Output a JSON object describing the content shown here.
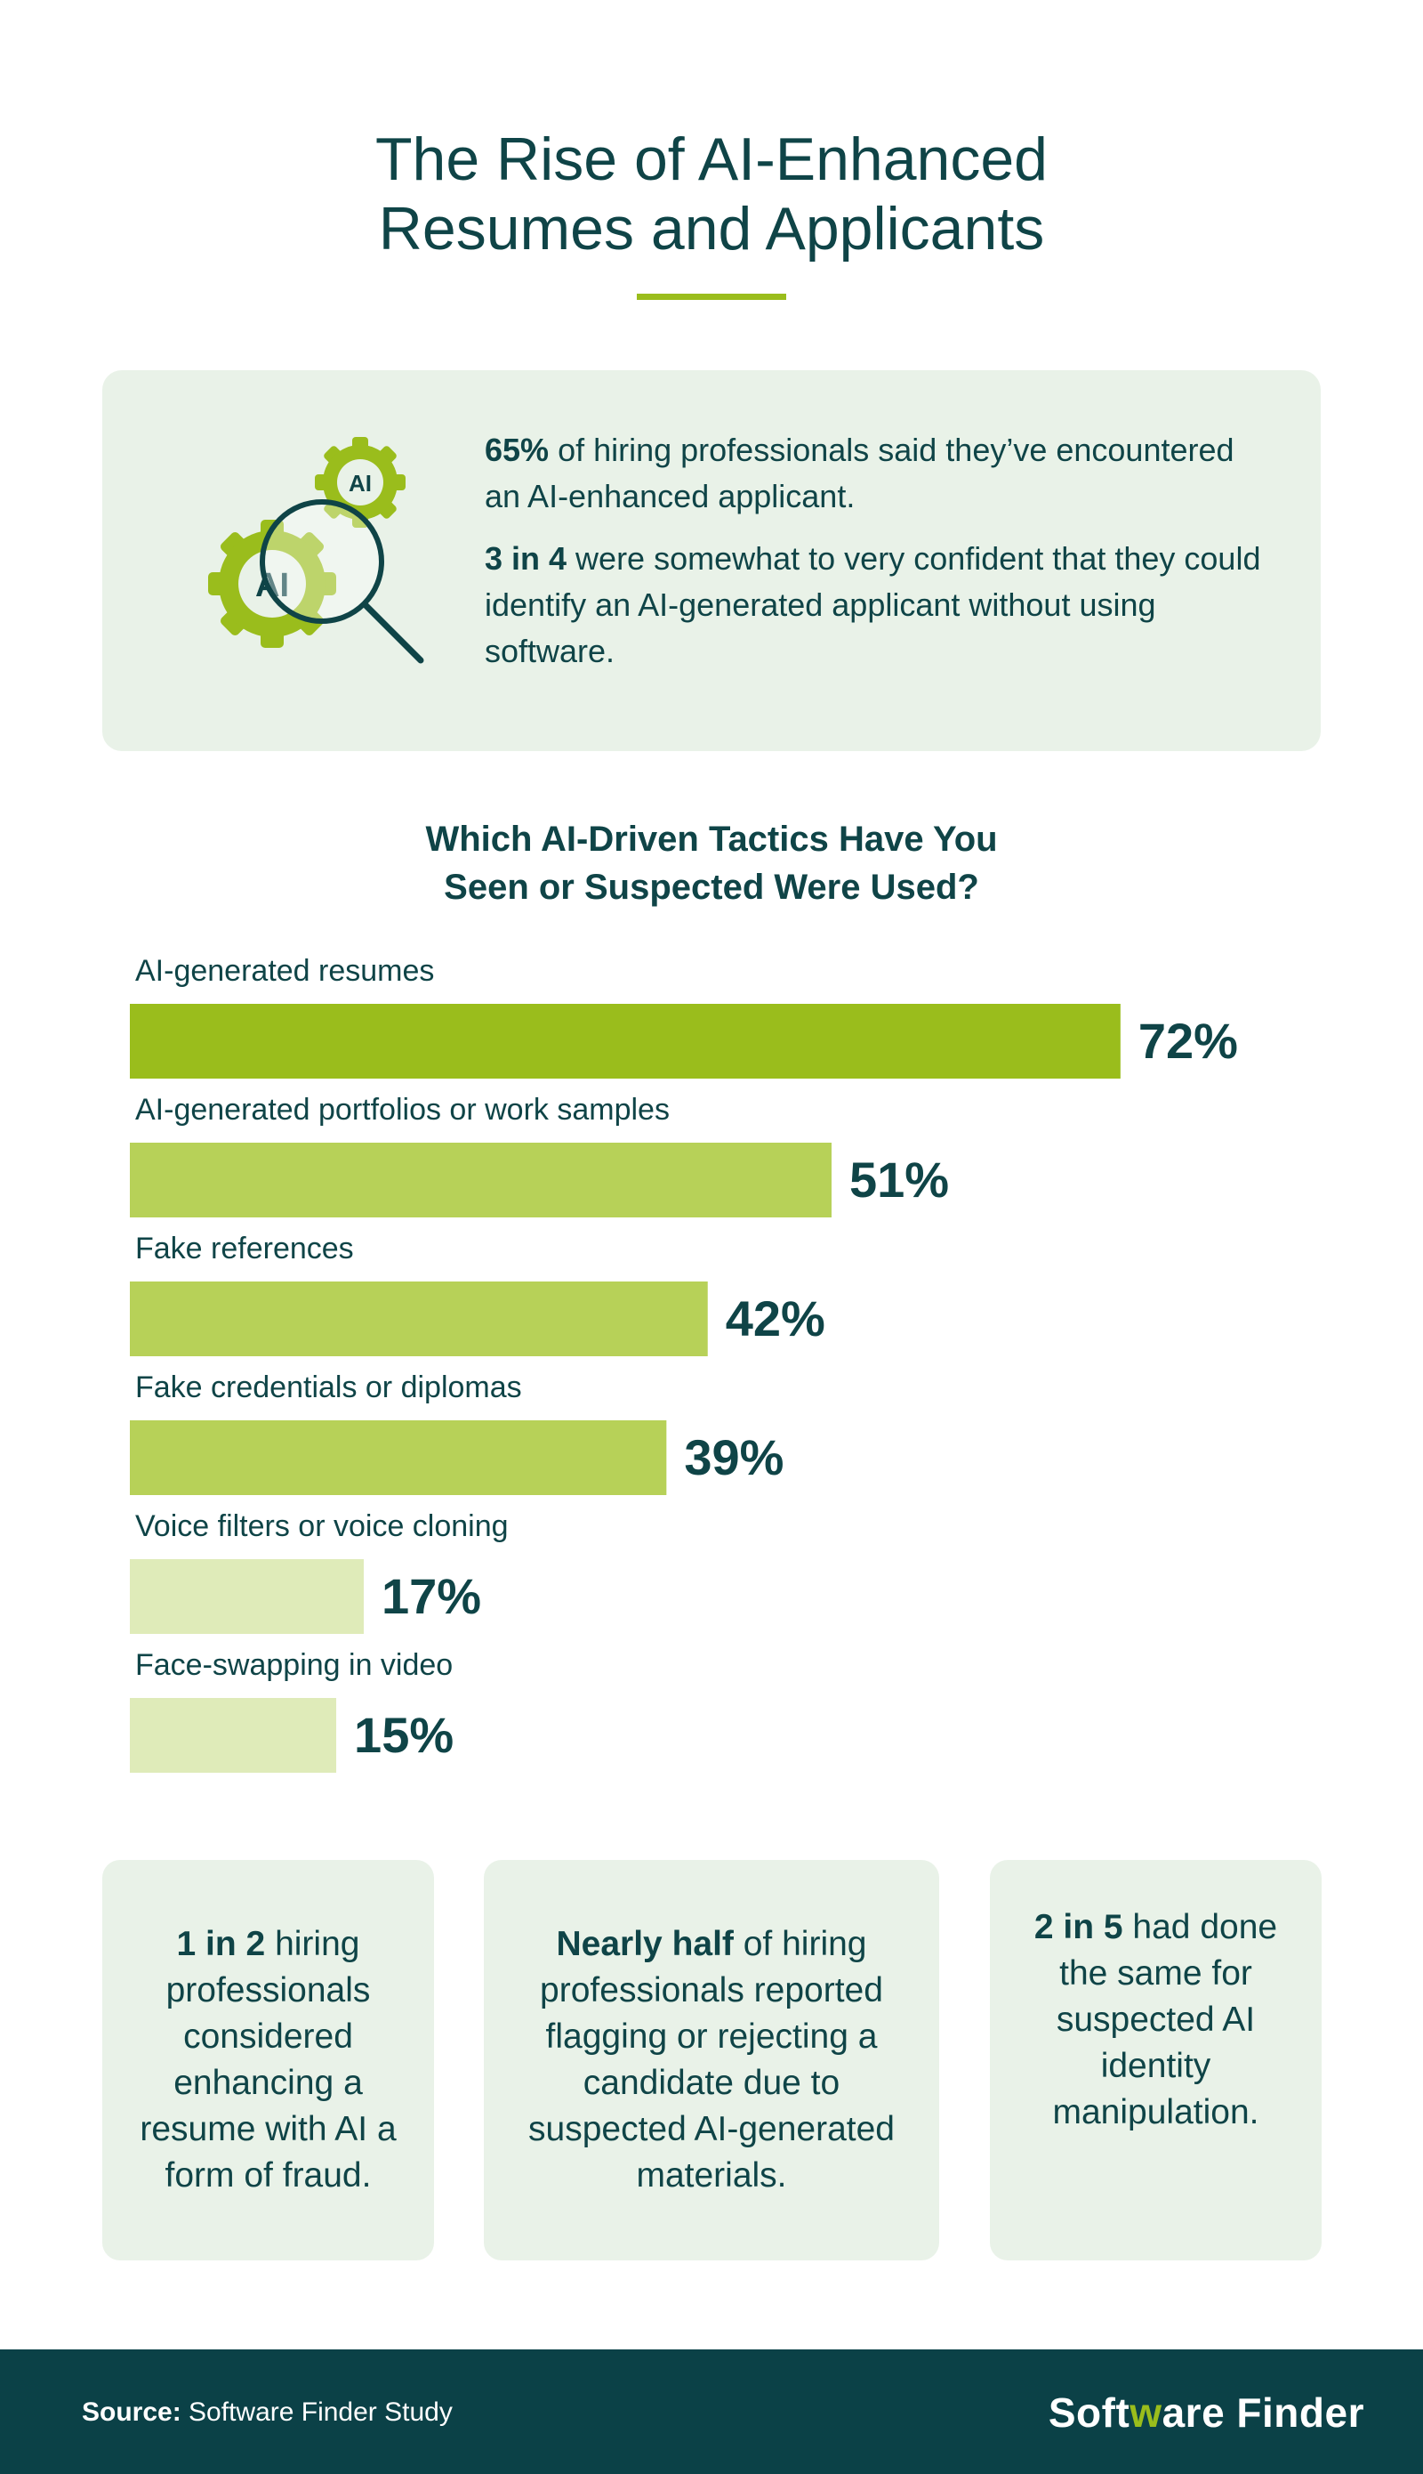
{
  "title_lines": [
    "The Rise of AI-Enhanced",
    "Resumes and Applicants"
  ],
  "intro": {
    "gear_large_label": "AI",
    "gear_small_label": "AI",
    "stat1_bold": "65%",
    "stat1_rest": " of hiring professionals said they’ve encountered an AI-enhanced applicant.",
    "stat2_bold": "3 in 4",
    "stat2_rest": " were somewhat to very confident that they could identify an AI-generated applicant without using software."
  },
  "chart_data": {
    "type": "bar",
    "orientation": "horizontal",
    "title_lines": [
      "Which AI-Driven Tactics Have You",
      "Seen or Suspected Were Used?"
    ],
    "categories": [
      "AI-generated resumes",
      "AI-generated portfolios or work samples",
      "Fake references",
      "Fake credentials or diplomas",
      "Voice filters or voice cloning",
      "Face-swapping in video"
    ],
    "values": [
      72,
      51,
      42,
      39,
      17,
      15
    ],
    "value_labels": [
      "72%",
      "51%",
      "42%",
      "39%",
      "17%",
      "15%"
    ],
    "bar_colors": [
      "#9abd1c",
      "#b7d158",
      "#b7d158",
      "#b7d158",
      "#dfebb9",
      "#dfebb9"
    ],
    "xlim": [
      0,
      100
    ],
    "grid": false
  },
  "stats": [
    {
      "bold": "1 in 2",
      "rest": " hiring professionals considered enhancing a resume with AI a form of fraud."
    },
    {
      "bold": "Nearly half",
      "rest": " of hiring professionals reported flagging or rejecting a candidate due to suspected AI-generated materials."
    },
    {
      "bold": "2 in 5",
      "rest": " had done the same for suspected AI identity manipulation."
    }
  ],
  "footer": {
    "source_label": "Source:",
    "source_text": " Software Finder Study",
    "brand_part1": "Soft",
    "brand_accent": "w",
    "brand_part2": "are Finder"
  },
  "colors": {
    "dark_teal": "#0f4447",
    "footer_bg": "#0b4147",
    "accent_green": "#9abd1c",
    "panel_bg": "#e9f2e8"
  }
}
